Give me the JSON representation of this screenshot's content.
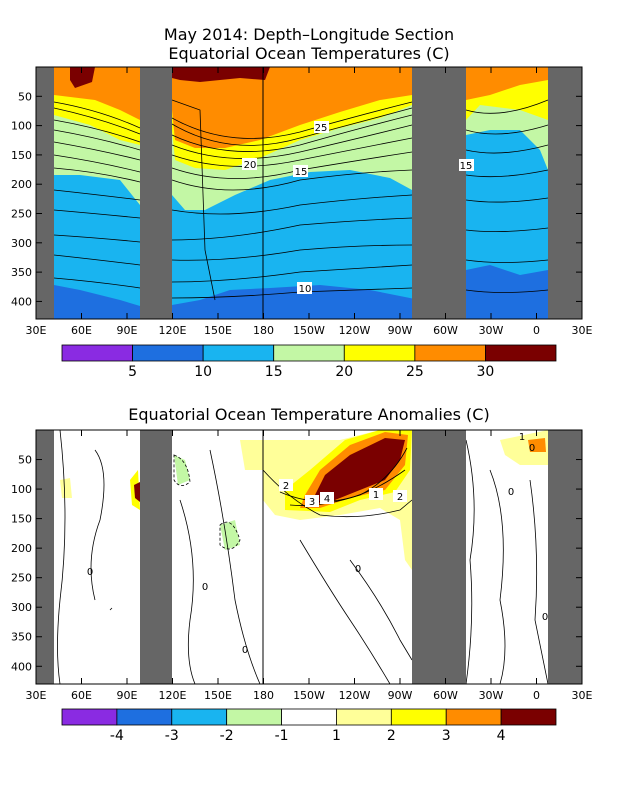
{
  "chart_data": [
    {
      "type": "heatmap",
      "title_line1": "May 2014: Depth–Longitude Section",
      "title_line2": "Equatorial Ocean Temperatures (C)",
      "x_ticks": [
        "30E",
        "60E",
        "90E",
        "120E",
        "150E",
        "180",
        "150W",
        "120W",
        "90W",
        "60W",
        "30W",
        "0",
        "30E"
      ],
      "y_ticks": [
        "50",
        "100",
        "150",
        "200",
        "250",
        "300",
        "350",
        "400"
      ],
      "xlim": [
        "30E",
        "30E"
      ],
      "ylim": [
        430,
        0
      ],
      "contour_labels": [
        "25",
        "20",
        "15",
        "15",
        "10"
      ],
      "colorbar": {
        "colors": [
          "#8a2be2",
          "#1e6fe0",
          "#19b4f0",
          "#c3f7a5",
          "#ffff00",
          "#ff8c00",
          "#7a0000"
        ],
        "labels": [
          "5",
          "10",
          "15",
          "20",
          "25",
          "30"
        ]
      },
      "land_masks": [
        "Africa",
        "Indonesia",
        "South America"
      ]
    },
    {
      "type": "heatmap",
      "title": "Equatorial Ocean Temperature Anomalies (C)",
      "x_ticks": [
        "30E",
        "60E",
        "90E",
        "120E",
        "150E",
        "180",
        "150W",
        "120W",
        "90W",
        "60W",
        "30W",
        "0",
        "30E"
      ],
      "y_ticks": [
        "50",
        "100",
        "150",
        "200",
        "250",
        "300",
        "350",
        "400"
      ],
      "xlim": [
        "30E",
        "30E"
      ],
      "ylim": [
        430,
        0
      ],
      "contour_labels": [
        "2",
        "3",
        "4",
        "1",
        "2",
        "0",
        "0",
        "0",
        "0",
        "0",
        "0",
        "1",
        "0"
      ],
      "colorbar": {
        "colors": [
          "#8a2be2",
          "#1e6fe0",
          "#19b4f0",
          "#c3f7a5",
          "#ffffff",
          "#ffff99",
          "#ffff00",
          "#ff8c00",
          "#7a0000"
        ],
        "labels": [
          "-4",
          "-3",
          "-2",
          "-1",
          "1",
          "2",
          "3",
          "4"
        ]
      },
      "land_masks": [
        "Africa",
        "Indonesia",
        "South America"
      ]
    }
  ]
}
